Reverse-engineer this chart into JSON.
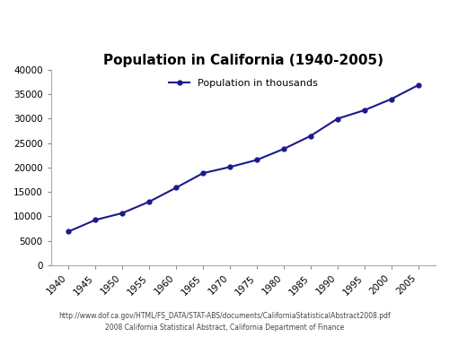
{
  "title": "Population in California (1940-2005)",
  "legend_label": "Population in thousands",
  "years": [
    1940,
    1945,
    1950,
    1955,
    1960,
    1965,
    1970,
    1975,
    1980,
    1985,
    1990,
    1995,
    2000,
    2005
  ],
  "population": [
    6907,
    9284,
    10677,
    13003,
    15863,
    18838,
    20098,
    21538,
    23782,
    26441,
    29959,
    31697,
    33974,
    36810
  ],
  "line_color": "#1a1a8c",
  "marker": "o",
  "marker_size": 3.5,
  "ylim": [
    0,
    40000
  ],
  "yticks": [
    0,
    5000,
    10000,
    15000,
    20000,
    25000,
    30000,
    35000,
    40000
  ],
  "xticks": [
    1940,
    1945,
    1950,
    1955,
    1960,
    1965,
    1970,
    1975,
    1980,
    1985,
    1990,
    1995,
    2000,
    2005
  ],
  "background_color": "#ffffff",
  "plot_bg_color": "#ffffff",
  "title_fontsize": 11,
  "legend_fontsize": 8,
  "tick_fontsize": 7.5,
  "footer_line1": "http://www.dof.ca.gov/HTML/FS_DATA/STAT-ABS/documents/CaliforniaStatisticalAbstract2008.pdf",
  "footer_line2": "2008 California Statistical Abstract, California Department of Finance",
  "footer_fontsize": 5.5
}
